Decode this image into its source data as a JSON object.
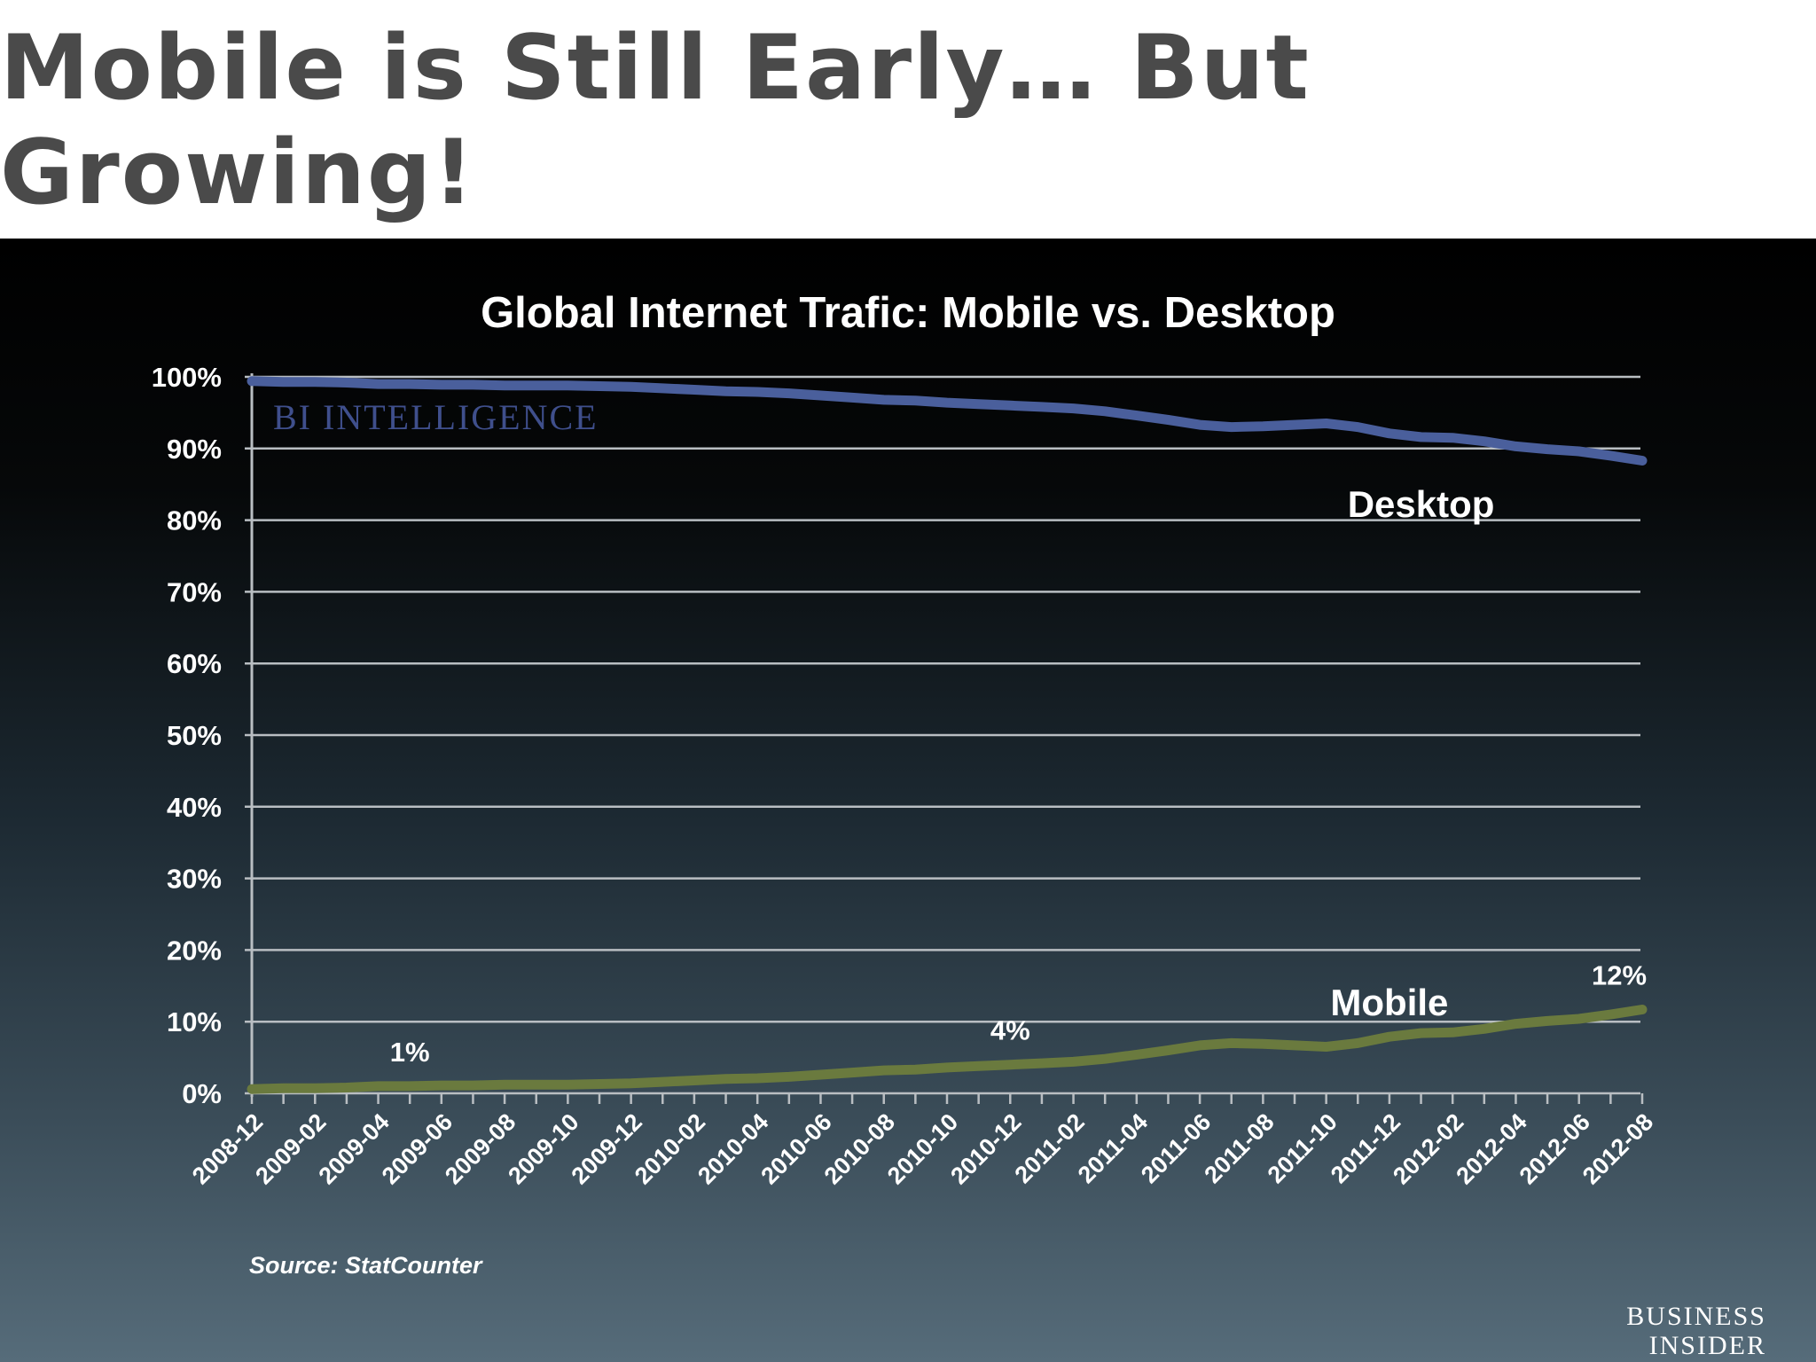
{
  "slide": {
    "title": "Mobile is Still Early… But Growing!"
  },
  "watermark": "BI INTELLIGENCE",
  "source": "Source: StatCounter",
  "brand": [
    "BUSINESS",
    "INSIDER"
  ],
  "chart_data": {
    "type": "line",
    "title": "Global Internet Trafic: Mobile vs. Desktop",
    "xlabel": "",
    "ylabel": "",
    "ylim": [
      0,
      100
    ],
    "yticks": [
      "0%",
      "10%",
      "20%",
      "30%",
      "40%",
      "50%",
      "60%",
      "70%",
      "80%",
      "90%",
      "100%"
    ],
    "x": [
      "2008-12",
      "2009-01",
      "2009-02",
      "2009-03",
      "2009-04",
      "2009-05",
      "2009-06",
      "2009-07",
      "2009-08",
      "2009-09",
      "2009-10",
      "2009-11",
      "2009-12",
      "2010-01",
      "2010-02",
      "2010-03",
      "2010-04",
      "2010-05",
      "2010-06",
      "2010-07",
      "2010-08",
      "2010-09",
      "2010-10",
      "2010-11",
      "2010-12",
      "2011-01",
      "2011-02",
      "2011-03",
      "2011-04",
      "2011-05",
      "2011-06",
      "2011-07",
      "2011-08",
      "2011-09",
      "2011-10",
      "2011-11",
      "2011-12",
      "2012-01",
      "2012-02",
      "2012-03",
      "2012-04",
      "2012-05",
      "2012-06",
      "2012-07",
      "2012-08"
    ],
    "xtick_labels": [
      "2008-12",
      "2009-02",
      "2009-04",
      "2009-06",
      "2009-08",
      "2009-10",
      "2009-12",
      "2010-02",
      "2010-04",
      "2010-06",
      "2010-08",
      "2010-10",
      "2010-12",
      "2011-02",
      "2011-04",
      "2011-06",
      "2011-08",
      "2011-10",
      "2011-12",
      "2012-02",
      "2012-04",
      "2012-06",
      "2012-08"
    ],
    "grid": true,
    "legend": "none",
    "series": [
      {
        "name": "Desktop",
        "color": "#4a5f9c",
        "values": [
          99.4,
          99.3,
          99.3,
          99.2,
          99.0,
          99.0,
          98.9,
          98.9,
          98.8,
          98.8,
          98.8,
          98.7,
          98.6,
          98.4,
          98.2,
          98.0,
          97.9,
          97.7,
          97.4,
          97.1,
          96.8,
          96.7,
          96.4,
          96.2,
          96.0,
          95.8,
          95.6,
          95.2,
          94.6,
          94.0,
          93.3,
          93.0,
          93.1,
          93.3,
          93.5,
          93.0,
          92.1,
          91.6,
          91.5,
          91.0,
          90.3,
          89.9,
          89.6,
          89.0,
          88.3
        ]
      },
      {
        "name": "Mobile",
        "color": "#6a7a3e",
        "values": [
          0.6,
          0.7,
          0.7,
          0.8,
          1.0,
          1.0,
          1.1,
          1.1,
          1.2,
          1.2,
          1.2,
          1.3,
          1.4,
          1.6,
          1.8,
          2.0,
          2.1,
          2.3,
          2.6,
          2.9,
          3.2,
          3.3,
          3.6,
          3.8,
          4.0,
          4.2,
          4.4,
          4.8,
          5.4,
          6.0,
          6.7,
          7.0,
          6.9,
          6.7,
          6.5,
          7.0,
          7.9,
          8.4,
          8.5,
          9.0,
          9.7,
          10.1,
          10.4,
          11.0,
          11.7
        ]
      }
    ],
    "annotations": [
      {
        "text": "Desktop",
        "series": "Desktop"
      },
      {
        "text": "Mobile",
        "series": "Mobile"
      },
      {
        "text": "1%",
        "x": "2009-05",
        "value": 1.0
      },
      {
        "text": "4%",
        "x": "2010-12",
        "value": 4.0
      },
      {
        "text": "12%",
        "x": "2012-08",
        "value": 11.7
      }
    ]
  }
}
